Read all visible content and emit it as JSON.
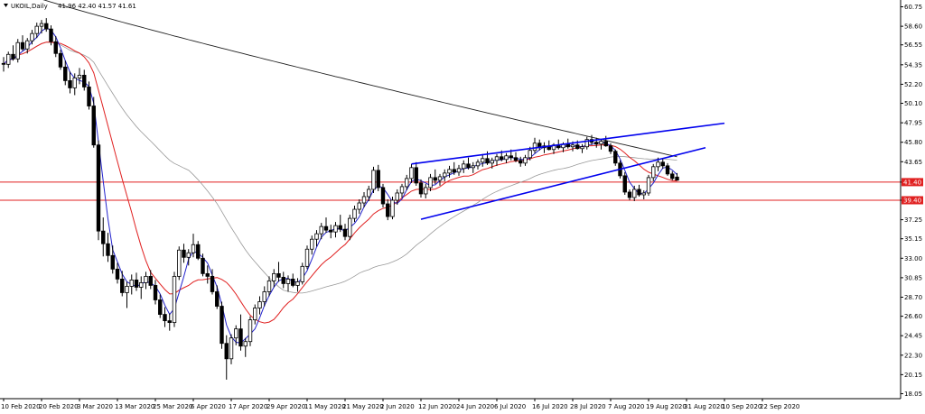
{
  "header": {
    "title": "UKOIL,Daily",
    "ohlc": "41.96 42.40 41.57 41.61"
  },
  "colors": {
    "axis": "#000000",
    "candle_up": "#ffffff",
    "candle_down": "#000000",
    "ma_fast": "#2222cc",
    "ma_mid": "#e02020",
    "ma_slow": "#999999",
    "ma_200": "#202020",
    "channel": "#0000ee",
    "hline": "#e02020",
    "label_bg": "#e02020"
  },
  "chart_data": {
    "type": "line",
    "ylim": [
      17.5,
      61.5
    ],
    "y_ticks": [
      "60.75",
      "58.60",
      "56.55",
      "54.35",
      "52.20",
      "50.10",
      "47.95",
      "45.80",
      "43.65",
      "41.40",
      "39.40",
      "37.25",
      "35.15",
      "33.00",
      "30.85",
      "28.70",
      "26.60",
      "24.45",
      "22.30",
      "20.15",
      "18.05"
    ],
    "y_tick_values": [
      60.75,
      58.6,
      56.55,
      54.35,
      52.2,
      50.1,
      47.95,
      45.8,
      43.65,
      41.4,
      39.4,
      37.25,
      35.15,
      33.0,
      30.85,
      28.7,
      26.6,
      24.45,
      22.3,
      20.15,
      18.05
    ],
    "x_ticks": [
      "10 Feb 2020",
      "20 Feb 2020",
      "3 Mar 2020",
      "13 Mar 2020",
      "25 Mar 2020",
      "6 Apr 2020",
      "17 Apr 2020",
      "29 Apr 2020",
      "11 May 2020",
      "21 May 2020",
      "2 Jun 2020",
      "12 Jun 2020",
      "24 Jun 2020",
      "6 Jul 2020",
      "16 Jul 2020",
      "28 Jul 2020",
      "7 Aug 2020",
      "19 Aug 2020",
      "31 Aug 2020",
      "10 Sep 2020",
      "22 Sep 2020"
    ],
    "x_tick_index": [
      0,
      8,
      16,
      24,
      32,
      40,
      48,
      56,
      64,
      72,
      80,
      88,
      96,
      104,
      112,
      120,
      128,
      136,
      144,
      152,
      160
    ],
    "price_labels": [
      {
        "value": 41.4,
        "text": "41.40"
      },
      {
        "value": 39.4,
        "text": "39.40"
      }
    ],
    "hlines": [
      41.4,
      39.4
    ],
    "candles": [
      [
        54.5,
        55.2,
        53.6,
        54.4
      ],
      [
        54.4,
        55.8,
        54.0,
        55.5
      ],
      [
        55.5,
        56.5,
        54.8,
        55.0
      ],
      [
        55.0,
        57.2,
        54.6,
        56.8
      ],
      [
        56.8,
        57.6,
        55.9,
        56.1
      ],
      [
        56.1,
        57.3,
        55.6,
        57.0
      ],
      [
        57.0,
        58.2,
        56.6,
        57.8
      ],
      [
        57.8,
        59.0,
        57.3,
        58.6
      ],
      [
        58.6,
        59.3,
        57.8,
        58.9
      ],
      [
        58.9,
        59.5,
        58.0,
        58.3
      ],
      [
        58.3,
        58.7,
        56.5,
        56.9
      ],
      [
        56.9,
        57.5,
        55.2,
        55.6
      ],
      [
        55.6,
        56.0,
        53.8,
        54.1
      ],
      [
        54.1,
        54.8,
        52.1,
        52.6
      ],
      [
        52.6,
        53.6,
        51.2,
        51.8
      ],
      [
        51.8,
        53.4,
        51.0,
        52.9
      ],
      [
        52.9,
        54.0,
        52.2,
        53.2
      ],
      [
        53.2,
        53.8,
        51.5,
        51.9
      ],
      [
        51.9,
        52.5,
        49.4,
        49.8
      ],
      [
        49.8,
        50.8,
        45.2,
        45.5
      ],
      [
        45.5,
        46.0,
        35.0,
        36.0
      ],
      [
        36.0,
        37.5,
        33.2,
        34.6
      ],
      [
        34.6,
        35.8,
        32.6,
        33.3
      ],
      [
        33.3,
        34.4,
        31.3,
        31.8
      ],
      [
        31.8,
        32.5,
        30.2,
        30.7
      ],
      [
        30.7,
        31.6,
        28.8,
        29.2
      ],
      [
        29.2,
        30.4,
        27.5,
        29.9
      ],
      [
        29.9,
        31.2,
        29.0,
        30.6
      ],
      [
        30.6,
        31.4,
        29.4,
        29.8
      ],
      [
        29.8,
        31.0,
        28.5,
        30.3
      ],
      [
        30.3,
        31.5,
        29.6,
        31.0
      ],
      [
        31.0,
        31.7,
        29.6,
        30.0
      ],
      [
        30.0,
        30.6,
        27.9,
        28.4
      ],
      [
        28.4,
        29.0,
        26.4,
        26.8
      ],
      [
        26.8,
        27.6,
        25.4,
        26.1
      ],
      [
        26.1,
        26.9,
        25.0,
        25.9
      ],
      [
        25.9,
        31.5,
        25.4,
        31.0
      ],
      [
        31.0,
        34.3,
        30.6,
        33.9
      ],
      [
        33.9,
        34.6,
        32.5,
        33.1
      ],
      [
        33.1,
        34.0,
        32.2,
        33.6
      ],
      [
        33.6,
        35.7,
        33.1,
        34.5
      ],
      [
        34.5,
        34.9,
        32.8,
        33.0
      ],
      [
        33.0,
        33.5,
        31.0,
        31.3
      ],
      [
        31.3,
        32.2,
        30.2,
        31.0
      ],
      [
        31.0,
        31.8,
        29.0,
        29.3
      ],
      [
        29.3,
        30.0,
        27.4,
        27.7
      ],
      [
        27.7,
        28.2,
        23.0,
        23.6
      ],
      [
        23.6,
        24.5,
        19.6,
        21.9
      ],
      [
        21.9,
        24.6,
        21.3,
        24.2
      ],
      [
        24.2,
        25.6,
        23.4,
        25.2
      ],
      [
        25.2,
        26.8,
        22.8,
        23.3
      ],
      [
        23.3,
        24.2,
        22.1,
        23.8
      ],
      [
        23.8,
        26.6,
        23.3,
        26.2
      ],
      [
        26.2,
        27.9,
        25.7,
        27.5
      ],
      [
        27.5,
        28.8,
        26.8,
        28.2
      ],
      [
        28.2,
        29.9,
        27.7,
        29.3
      ],
      [
        29.3,
        31.0,
        28.8,
        30.5
      ],
      [
        30.5,
        31.8,
        29.8,
        31.3
      ],
      [
        31.3,
        32.6,
        30.4,
        30.9
      ],
      [
        30.9,
        31.5,
        29.7,
        30.2
      ],
      [
        30.2,
        31.1,
        29.3,
        30.7
      ],
      [
        30.7,
        31.3,
        29.8,
        30.0
      ],
      [
        30.0,
        30.8,
        29.3,
        30.4
      ],
      [
        30.4,
        32.5,
        30.1,
        32.1
      ],
      [
        32.1,
        34.4,
        31.8,
        34.0
      ],
      [
        34.0,
        35.5,
        33.4,
        35.1
      ],
      [
        35.1,
        36.1,
        34.3,
        35.7
      ],
      [
        35.7,
        36.9,
        35.1,
        36.5
      ],
      [
        36.5,
        37.5,
        35.8,
        36.1
      ],
      [
        36.1,
        36.7,
        35.2,
        35.9
      ],
      [
        35.9,
        37.0,
        35.3,
        36.6
      ],
      [
        36.6,
        37.8,
        35.9,
        36.2
      ],
      [
        36.2,
        36.8,
        35.0,
        35.4
      ],
      [
        35.4,
        37.8,
        35.0,
        37.4
      ],
      [
        37.4,
        38.8,
        37.0,
        38.4
      ],
      [
        38.4,
        39.5,
        37.9,
        39.1
      ],
      [
        39.1,
        40.3,
        38.6,
        39.8
      ],
      [
        39.8,
        41.0,
        39.3,
        40.6
      ],
      [
        40.6,
        43.1,
        40.2,
        42.7
      ],
      [
        42.7,
        43.3,
        40.4,
        40.8
      ],
      [
        40.8,
        41.2,
        38.6,
        39.0
      ],
      [
        39.0,
        39.5,
        37.2,
        37.6
      ],
      [
        37.6,
        39.8,
        37.3,
        39.4
      ],
      [
        39.4,
        40.6,
        38.9,
        40.2
      ],
      [
        40.2,
        41.2,
        39.7,
        40.9
      ],
      [
        40.9,
        42.2,
        40.5,
        41.8
      ],
      [
        41.8,
        43.4,
        41.3,
        43.0
      ],
      [
        43.0,
        43.6,
        41.0,
        41.3
      ],
      [
        41.3,
        41.7,
        39.7,
        40.1
      ],
      [
        40.1,
        41.2,
        39.6,
        40.8
      ],
      [
        40.8,
        42.3,
        40.4,
        41.9
      ],
      [
        41.9,
        42.8,
        41.2,
        41.6
      ],
      [
        41.6,
        42.3,
        41.0,
        42.0
      ],
      [
        42.0,
        42.8,
        41.5,
        42.4
      ],
      [
        42.4,
        43.2,
        41.9,
        42.8
      ],
      [
        42.8,
        43.6,
        42.2,
        42.5
      ],
      [
        42.5,
        43.3,
        42.1,
        42.9
      ],
      [
        42.9,
        43.8,
        42.4,
        43.4
      ],
      [
        43.4,
        44.1,
        42.8,
        43.0
      ],
      [
        43.0,
        43.6,
        42.4,
        43.2
      ],
      [
        43.2,
        43.9,
        42.8,
        43.6
      ],
      [
        43.6,
        44.5,
        43.1,
        44.0
      ],
      [
        44.0,
        44.8,
        43.3,
        43.5
      ],
      [
        43.5,
        44.1,
        42.9,
        43.8
      ],
      [
        43.8,
        44.5,
        43.2,
        44.2
      ],
      [
        44.2,
        44.9,
        43.7,
        43.9
      ],
      [
        43.9,
        44.6,
        43.5,
        44.3
      ],
      [
        44.3,
        45.0,
        43.8,
        44.1
      ],
      [
        44.1,
        44.7,
        43.6,
        43.8
      ],
      [
        43.8,
        44.2,
        43.1,
        43.5
      ],
      [
        43.5,
        44.4,
        43.2,
        44.1
      ],
      [
        44.1,
        45.3,
        43.8,
        44.9
      ],
      [
        44.9,
        46.3,
        44.6,
        45.7
      ],
      [
        45.7,
        46.1,
        44.9,
        45.2
      ],
      [
        45.2,
        45.8,
        44.6,
        45.4
      ],
      [
        45.4,
        46.0,
        44.9,
        45.0
      ],
      [
        45.0,
        45.7,
        44.5,
        45.5
      ],
      [
        45.5,
        46.1,
        45.0,
        45.2
      ],
      [
        45.2,
        45.8,
        44.7,
        45.6
      ],
      [
        45.6,
        46.2,
        45.1,
        45.3
      ],
      [
        45.3,
        45.9,
        44.8,
        45.5
      ],
      [
        45.5,
        46.0,
        45.0,
        45.1
      ],
      [
        45.1,
        45.6,
        44.6,
        45.3
      ],
      [
        45.3,
        46.4,
        45.0,
        46.1
      ],
      [
        46.1,
        46.6,
        45.5,
        45.8
      ],
      [
        45.8,
        46.3,
        45.2,
        45.6
      ],
      [
        45.6,
        46.1,
        45.0,
        45.9
      ],
      [
        45.9,
        46.5,
        45.3,
        45.4
      ],
      [
        45.4,
        45.7,
        44.5,
        44.8
      ],
      [
        44.8,
        45.0,
        43.2,
        43.5
      ],
      [
        43.5,
        43.8,
        41.8,
        42.1
      ],
      [
        42.1,
        42.5,
        40.0,
        40.3
      ],
      [
        40.3,
        40.6,
        39.4,
        39.7
      ],
      [
        39.7,
        41.0,
        39.3,
        40.6
      ],
      [
        40.6,
        41.1,
        39.8,
        40.0
      ],
      [
        40.0,
        40.5,
        39.5,
        40.2
      ],
      [
        40.2,
        42.2,
        39.9,
        41.9
      ],
      [
        41.9,
        43.4,
        41.5,
        43.1
      ],
      [
        43.1,
        44.1,
        42.6,
        43.6
      ],
      [
        43.6,
        44.0,
        42.9,
        43.2
      ],
      [
        43.2,
        43.5,
        42.1,
        42.3
      ],
      [
        42.3,
        42.6,
        41.6,
        41.8
      ],
      [
        41.96,
        42.4,
        41.57,
        41.61
      ]
    ],
    "channel": {
      "upper": [
        [
          86,
          43.4
        ],
        [
          152,
          47.9
        ]
      ],
      "lower": [
        [
          88,
          37.3
        ],
        [
          148,
          45.2
        ]
      ]
    }
  }
}
